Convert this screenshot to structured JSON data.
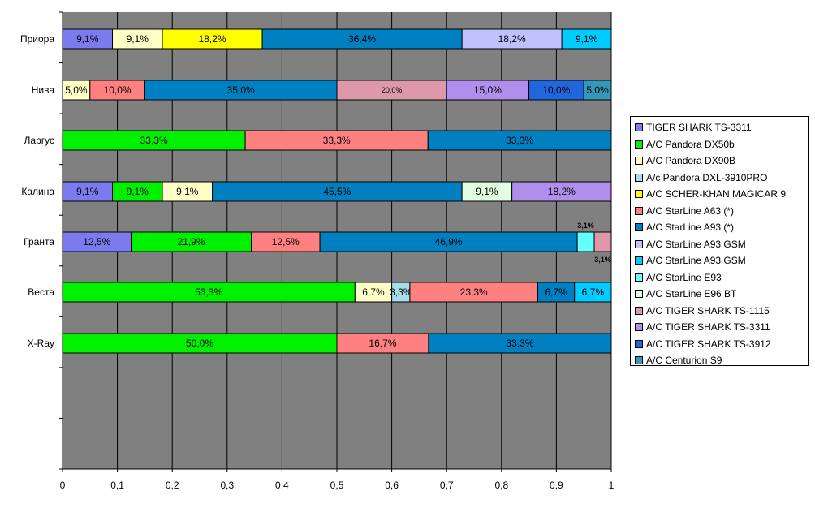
{
  "chart_data": {
    "type": "bar",
    "orientation": "horizontal",
    "stacked": "100%",
    "categories": [
      "Приора",
      "Нива",
      "Ларгус",
      "Калина",
      "Гранта",
      "Веста",
      "X-Ray"
    ],
    "xlim": [
      0,
      1
    ],
    "xticks": [
      "0",
      "0,1",
      "0,2",
      "0,3",
      "0,4",
      "0,5",
      "0,6",
      "0,7",
      "0,8",
      "0,9",
      "1"
    ],
    "grid": true,
    "background": "#808080",
    "legend_position": "right",
    "legend": [
      {
        "name": "TIGER SHARK TS-3311",
        "color": "#7B7BEE"
      },
      {
        "name": "A/C Pandora DX50b",
        "color": "#00F000"
      },
      {
        "name": "A/C Pandora DX90B",
        "color": "#FFFFC8"
      },
      {
        "name": "A/c Pandora DXL-3910PRO",
        "color": "#A8DCE8"
      },
      {
        "name": "A/C SCHER-KHAN MAGICAR 9",
        "color": "#FFFF00"
      },
      {
        "name": "A/C StarLine A63 (*)",
        "color": "#FF8080"
      },
      {
        "name": "A/C StarLine A93 (*)",
        "color": "#0080C0"
      },
      {
        "name": "A/C StarLine A93 GSM",
        "color": "#C0C0FF"
      },
      {
        "name": "A/C StarLine A93 GSM",
        "color": "#00CCFF"
      },
      {
        "name": "A/C StarLine E93",
        "color": "#66FFFF"
      },
      {
        "name": "A/C StarLine E96 BT",
        "color": "#E0FFE0"
      },
      {
        "name": "A/C TIGER SHARK TS-1115",
        "color": "#DD99AA"
      },
      {
        "name": "A/C TIGER SHARK TS-3311",
        "color": "#B08EEB"
      },
      {
        "name": "A/C TIGER SHARK TS-3912",
        "color": "#2266DD"
      },
      {
        "name": "A/C Centurion S9",
        "color": "#3399BB"
      }
    ],
    "rows": [
      {
        "category": "Приора",
        "segments": [
          {
            "series": 0,
            "value": 0.091,
            "label": "9,1%"
          },
          {
            "series": 2,
            "value": 0.091,
            "label": "9,1%"
          },
          {
            "series": 4,
            "value": 0.182,
            "label": "18,2%"
          },
          {
            "series": 6,
            "value": 0.364,
            "label": "36,4%"
          },
          {
            "series": 7,
            "value": 0.182,
            "label": "18,2%"
          },
          {
            "series": 8,
            "value": 0.091,
            "label": "9,1%"
          }
        ]
      },
      {
        "category": "Нива",
        "segments": [
          {
            "series": 2,
            "value": 0.05,
            "label": "5,0%"
          },
          {
            "series": 5,
            "value": 0.1,
            "label": "10,0%"
          },
          {
            "series": 6,
            "value": 0.35,
            "label": "35,0%"
          },
          {
            "series": 11,
            "value": 0.2,
            "label": "20,0%",
            "small": true
          },
          {
            "series": 12,
            "value": 0.15,
            "label": "15,0%"
          },
          {
            "series": 13,
            "value": 0.1,
            "label": "10,0%"
          },
          {
            "series": 14,
            "value": 0.05,
            "label": "5,0%"
          }
        ]
      },
      {
        "category": "Ларгус",
        "segments": [
          {
            "series": 1,
            "value": 0.333,
            "label": "33,3%"
          },
          {
            "series": 5,
            "value": 0.333,
            "label": "33,3%"
          },
          {
            "series": 6,
            "value": 0.334,
            "label": "33,3%"
          }
        ]
      },
      {
        "category": "Калина",
        "segments": [
          {
            "series": 0,
            "value": 0.091,
            "label": "9,1%"
          },
          {
            "series": 1,
            "value": 0.091,
            "label": "9,1%"
          },
          {
            "series": 2,
            "value": 0.091,
            "label": "9,1%"
          },
          {
            "series": 6,
            "value": 0.455,
            "label": "45,5%"
          },
          {
            "series": 10,
            "value": 0.091,
            "label": "9,1%"
          },
          {
            "series": 12,
            "value": 0.182,
            "label": "18,2%"
          }
        ]
      },
      {
        "category": "Гранта",
        "segments": [
          {
            "series": 0,
            "value": 0.125,
            "label": "12,5%"
          },
          {
            "series": 1,
            "value": 0.219,
            "label": "21,9%"
          },
          {
            "series": 5,
            "value": 0.125,
            "label": "12,5%"
          },
          {
            "series": 6,
            "value": 0.469,
            "label": "46,9%"
          },
          {
            "series": 9,
            "value": 0.031,
            "label": "3,1%",
            "label_pos": "above"
          },
          {
            "series": 11,
            "value": 0.031,
            "label": "3,1%",
            "label_pos": "below"
          }
        ]
      },
      {
        "category": "Веста",
        "segments": [
          {
            "series": 1,
            "value": 0.533,
            "label": "53,3%"
          },
          {
            "series": 2,
            "value": 0.067,
            "label": "6,7%"
          },
          {
            "series": 3,
            "value": 0.033,
            "label": "3,3%"
          },
          {
            "series": 5,
            "value": 0.233,
            "label": "23,3%"
          },
          {
            "series": 6,
            "value": 0.067,
            "label": "6,7%"
          },
          {
            "series": 8,
            "value": 0.067,
            "label": "6,7%"
          }
        ]
      },
      {
        "category": "X-Ray",
        "segments": [
          {
            "series": 1,
            "value": 0.5,
            "label": "50,0%"
          },
          {
            "series": 5,
            "value": 0.167,
            "label": "16,7%"
          },
          {
            "series": 6,
            "value": 0.333,
            "label": "33,3%"
          }
        ]
      }
    ]
  }
}
